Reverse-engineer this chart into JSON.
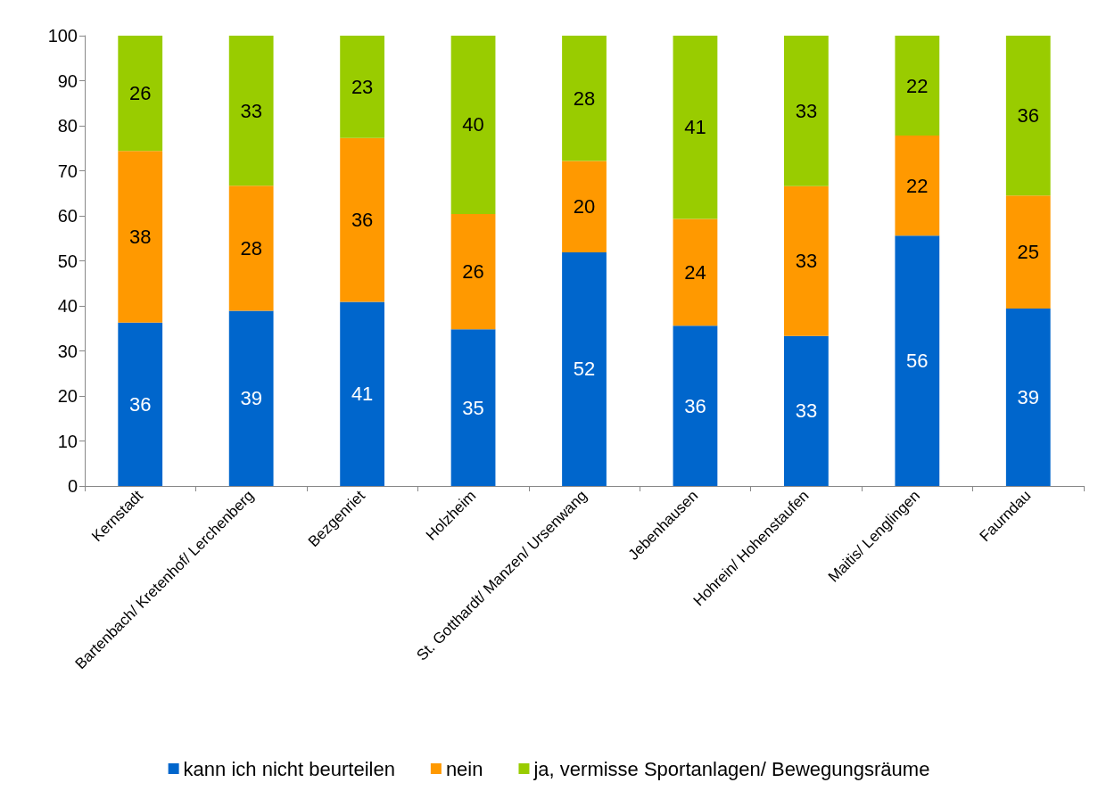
{
  "chart_data": {
    "type": "bar",
    "stacked": true,
    "categories": [
      "Kernstadt",
      "Bartenbach/ Kretenhof/ Lerchenberg",
      "Bezgenriet",
      "Holzheim",
      "St. Gotthardt/ Manzen/ Ursenwang",
      "Jebenhausen",
      "Hohrein/ Hohenstaufen",
      "Maitis/ Lenglingen",
      "Faurndau"
    ],
    "series": [
      {
        "name": "kann ich nicht beurteilen",
        "color": "#0066cc",
        "values": [
          36.3,
          38.9,
          40.9,
          34.8,
          51.9,
          35.6,
          33.3,
          55.6,
          39.4
        ],
        "value_labels": [
          "36",
          "39",
          "41",
          "35",
          "52",
          "36",
          "33",
          "56",
          "39"
        ]
      },
      {
        "name": "nein",
        "color": "#ff9900",
        "values": [
          38.1,
          27.8,
          36.4,
          25.6,
          20.3,
          23.7,
          33.3,
          22.2,
          25.1
        ],
        "value_labels": [
          "38",
          "28",
          "36",
          "26",
          "20",
          "24",
          "33",
          "22",
          "25"
        ]
      },
      {
        "name": "ja, vermisse Sportanlagen/ Bewegungsräume",
        "color": "#99cc00",
        "values": [
          25.6,
          33.3,
          22.7,
          39.6,
          27.8,
          40.7,
          33.4,
          22.2,
          35.5
        ],
        "value_labels": [
          "26",
          "33",
          "23",
          "40",
          "28",
          "41",
          "33",
          "22",
          "36"
        ]
      }
    ],
    "ylim": [
      0,
      100
    ],
    "yticks": [
      0,
      10,
      20,
      30,
      40,
      50,
      60,
      70,
      80,
      90,
      100
    ],
    "grid": false,
    "legend": "bottom"
  }
}
